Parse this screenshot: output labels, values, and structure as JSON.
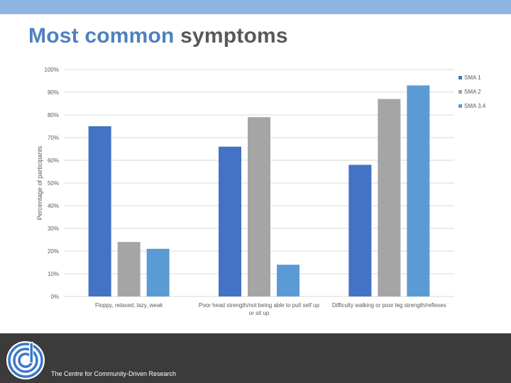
{
  "slide": {
    "title_highlight": "Most common",
    "title_rest": "symptoms",
    "footer_text": "The Centre for Community-Driven Research"
  },
  "colors": {
    "top_bar": "#8eb4e3",
    "title_accent": "#4f81bd",
    "title_text": "#595959",
    "footer_bg": "#3b3b3b"
  },
  "chart_data": {
    "type": "bar",
    "title": "",
    "xlabel": "",
    "ylabel": "Percentage of participants",
    "ylim": [
      0,
      100
    ],
    "yticks": [
      0,
      10,
      20,
      30,
      40,
      50,
      60,
      70,
      80,
      90,
      100
    ],
    "ytick_labels": [
      "0%",
      "10%",
      "20%",
      "30%",
      "40%",
      "50%",
      "60%",
      "70%",
      "80%",
      "90%",
      "100%"
    ],
    "grid": true,
    "legend_position": "top-right",
    "categories": [
      [
        "Floppy, relaxed, lazy, weak"
      ],
      [
        "Poor head strength/not being able to pull self up",
        "or sit up"
      ],
      [
        "Difficulty walking or poor leg strength/reflexes"
      ]
    ],
    "series": [
      {
        "name": "SMA 1",
        "color": "#4472c4",
        "values": [
          75,
          66,
          58
        ]
      },
      {
        "name": "SMA 2",
        "color": "#a5a5a5",
        "values": [
          24,
          79,
          87
        ]
      },
      {
        "name": "SMA 3,4",
        "color": "#5b9bd5",
        "values": [
          21,
          14,
          93
        ]
      }
    ]
  }
}
